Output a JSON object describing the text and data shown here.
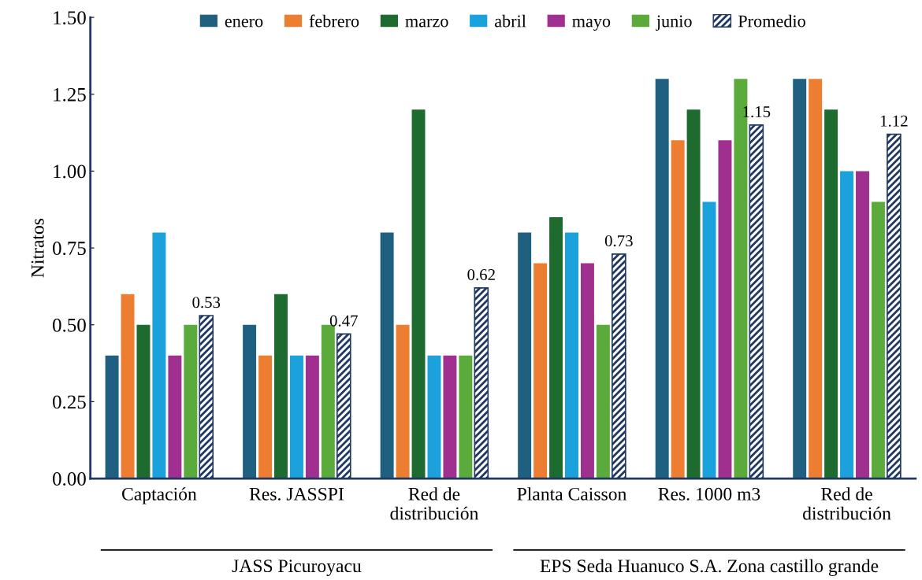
{
  "chart_data": {
    "type": "bar",
    "ylabel": "Nitratos",
    "categories": [
      "Captación",
      "Res. JASSPI",
      "Red de\ndistribución",
      "Planta Caisson",
      "Res. 1000 m3",
      "Red de\ndistribución"
    ],
    "series": [
      {
        "name": "enero",
        "color": "#1f5f80",
        "values": [
          0.4,
          0.5,
          0.8,
          0.8,
          1.3,
          1.3
        ]
      },
      {
        "name": "febrero",
        "color": "#ed7d31",
        "values": [
          0.6,
          0.4,
          0.5,
          0.7,
          1.1,
          1.3
        ]
      },
      {
        "name": "marzo",
        "color": "#1e6b30",
        "values": [
          0.5,
          0.6,
          1.2,
          0.85,
          1.2,
          1.2
        ]
      },
      {
        "name": "abril",
        "color": "#1ba1dc",
        "values": [
          0.8,
          0.4,
          0.4,
          0.8,
          0.9,
          1.0
        ]
      },
      {
        "name": "mayo",
        "color": "#a0308f",
        "values": [
          0.4,
          0.4,
          0.4,
          0.7,
          1.1,
          1.0
        ]
      },
      {
        "name": "junio",
        "color": "#5aaa3c",
        "values": [
          0.5,
          0.5,
          0.4,
          0.5,
          1.3,
          0.9
        ]
      },
      {
        "name": "Promedio",
        "color": "#1f3864",
        "values": [
          0.53,
          0.47,
          0.62,
          0.73,
          1.15,
          1.12
        ],
        "value_labels": [
          "0.53",
          "0.47",
          "0.62",
          "0.73",
          "1.15",
          "1.12"
        ]
      }
    ],
    "ylim": [
      0,
      1.5
    ],
    "yticks": [
      {
        "value": 0,
        "label": "0.00"
      },
      {
        "value": 0.25,
        "label": "0.25"
      },
      {
        "value": 0.5,
        "label": "0.50"
      },
      {
        "value": 0.75,
        "label": "0.75"
      },
      {
        "value": 1.0,
        "label": "1.00"
      },
      {
        "value": 1.25,
        "label": "1.25"
      },
      {
        "value": 1.5,
        "label": "1.50"
      }
    ],
    "annotations": [
      "JASS Picuroyacu",
      "EPS Seda Huanuco S.A. Zona castillo grande"
    ],
    "grid": false,
    "legend": "top"
  }
}
